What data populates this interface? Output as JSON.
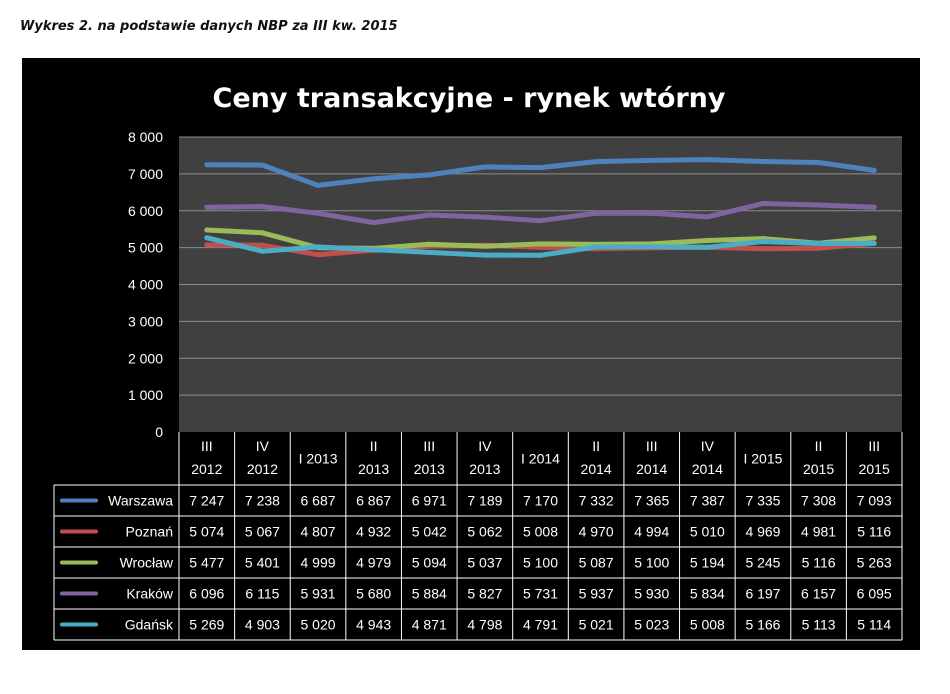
{
  "caption": "Wykres 2. na podstawie danych NBP za III kw. 2015",
  "chart_data": {
    "type": "line",
    "title": "Ceny transakcyjne - rynek wtórny",
    "categories": [
      [
        "III",
        "2012"
      ],
      [
        "IV",
        "2012"
      ],
      [
        "I 2013"
      ],
      [
        "II",
        "2013"
      ],
      [
        "III",
        "2013"
      ],
      [
        "IV",
        "2013"
      ],
      [
        "I 2014"
      ],
      [
        "II",
        "2014"
      ],
      [
        "III",
        "2014"
      ],
      [
        "IV",
        "2014"
      ],
      [
        "I 2015"
      ],
      [
        "II",
        "2015"
      ],
      [
        "III",
        "2015"
      ]
    ],
    "ylim": [
      0,
      8000
    ],
    "yticks": [
      0,
      1000,
      2000,
      3000,
      4000,
      5000,
      6000,
      7000,
      8000
    ],
    "ytick_labels": [
      "0",
      "1 000",
      "2 000",
      "3 000",
      "4 000",
      "5 000",
      "6 000",
      "7 000",
      "8 000"
    ],
    "grid": true,
    "legend": "data-table",
    "series": [
      {
        "name": "Warszawa",
        "color": "#4F81BD",
        "values": [
          7247,
          7238,
          6687,
          6867,
          6971,
          7189,
          7170,
          7332,
          7365,
          7387,
          7335,
          7308,
          7093
        ],
        "labels": [
          "7 247",
          "7 238",
          "6 687",
          "6 867",
          "6 971",
          "7 189",
          "7 170",
          "7 332",
          "7 365",
          "7 387",
          "7 335",
          "7 308",
          "7 093"
        ]
      },
      {
        "name": "Poznań",
        "color": "#C0504D",
        "values": [
          5074,
          5067,
          4807,
          4932,
          5042,
          5062,
          5008,
          4970,
          4994,
          5010,
          4969,
          4981,
          5116
        ],
        "labels": [
          "5 074",
          "5 067",
          "4 807",
          "4 932",
          "5 042",
          "5 062",
          "5 008",
          "4 970",
          "4 994",
          "5 010",
          "4 969",
          "4 981",
          "5 116"
        ]
      },
      {
        "name": "Wrocław",
        "color": "#9BBB59",
        "values": [
          5477,
          5401,
          4999,
          4979,
          5094,
          5037,
          5100,
          5087,
          5100,
          5194,
          5245,
          5116,
          5263
        ],
        "labels": [
          "5 477",
          "5 401",
          "4 999",
          "4 979",
          "5 094",
          "5 037",
          "5 100",
          "5 087",
          "5 100",
          "5 194",
          "5 245",
          "5 116",
          "5 263"
        ]
      },
      {
        "name": "Kraków",
        "color": "#8064A2",
        "values": [
          6096,
          6115,
          5931,
          5680,
          5884,
          5827,
          5731,
          5937,
          5930,
          5834,
          6197,
          6157,
          6095
        ],
        "labels": [
          "6 096",
          "6 115",
          "5 931",
          "5 680",
          "5 884",
          "5 827",
          "5 731",
          "5 937",
          "5 930",
          "5 834",
          "6 197",
          "6 157",
          "6 095"
        ]
      },
      {
        "name": "Gdańsk",
        "color": "#4BACC6",
        "values": [
          5269,
          4903,
          5020,
          4943,
          4871,
          4798,
          4791,
          5021,
          5023,
          5008,
          5166,
          5113,
          5114
        ],
        "labels": [
          "5 269",
          "4 903",
          "5 020",
          "4 943",
          "4 871",
          "4 798",
          "4 791",
          "5 021",
          "5 023",
          "5 008",
          "5 166",
          "5 113",
          "5 114"
        ]
      }
    ]
  }
}
